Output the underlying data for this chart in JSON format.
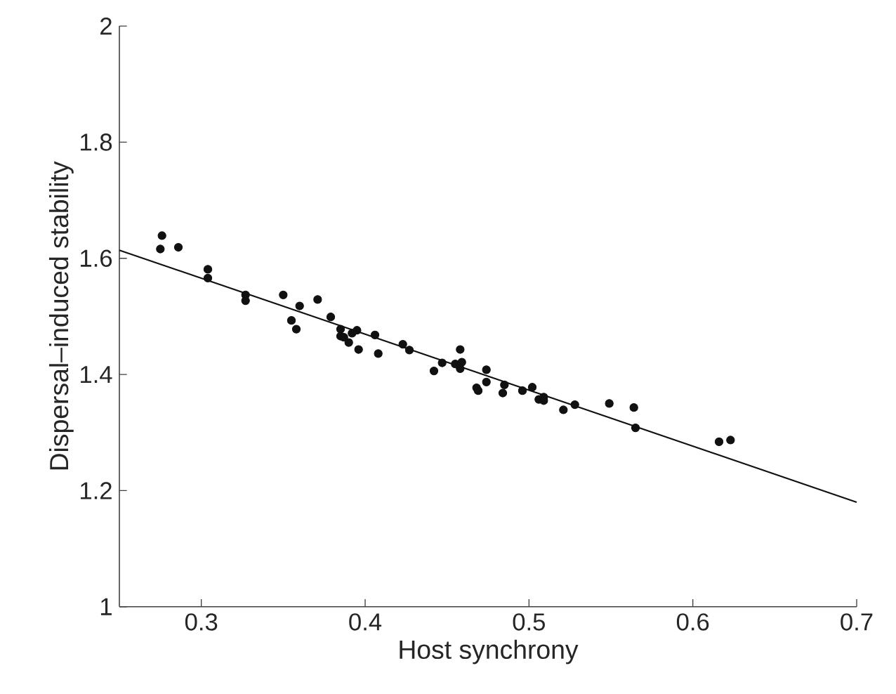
{
  "chart_data": {
    "type": "scatter",
    "xlabel": "Host synchrony",
    "ylabel": "Dispersal–induced stability",
    "xlim": [
      0.25,
      0.7
    ],
    "ylim": [
      1,
      2
    ],
    "xticks": [
      0.3,
      0.4,
      0.5,
      0.6,
      0.7
    ],
    "yticks": [
      1,
      1.2,
      1.4,
      1.6,
      1.8,
      2
    ],
    "grid": false,
    "series": [
      {
        "color": "#111111",
        "marker": "circle",
        "x": [
          0.276,
          0.275,
          0.286,
          0.304,
          0.304,
          0.327,
          0.327,
          0.35,
          0.355,
          0.358,
          0.36,
          0.371,
          0.379,
          0.385,
          0.385,
          0.387,
          0.39,
          0.392,
          0.395,
          0.396,
          0.406,
          0.408,
          0.423,
          0.427,
          0.442,
          0.447,
          0.455,
          0.458,
          0.459,
          0.458,
          0.468,
          0.469,
          0.474,
          0.474,
          0.484,
          0.485,
          0.496,
          0.502,
          0.506,
          0.509,
          0.509,
          0.521,
          0.528,
          0.549,
          0.564,
          0.565,
          0.616,
          0.623
        ],
        "values": [
          1.639,
          1.616,
          1.619,
          1.581,
          1.566,
          1.537,
          1.527,
          1.537,
          1.493,
          1.478,
          1.518,
          1.529,
          1.499,
          1.478,
          1.466,
          1.464,
          1.455,
          1.471,
          1.476,
          1.443,
          1.468,
          1.436,
          1.452,
          1.442,
          1.406,
          1.42,
          1.418,
          1.443,
          1.421,
          1.41,
          1.377,
          1.372,
          1.408,
          1.387,
          1.368,
          1.382,
          1.372,
          1.378,
          1.357,
          1.361,
          1.355,
          1.339,
          1.348,
          1.35,
          1.343,
          1.308,
          1.284,
          1.287
        ]
      },
      {
        "type": "line",
        "color": "#111111",
        "marker": "none",
        "line_style": "solid",
        "x": [
          0.25,
          0.7
        ],
        "values": [
          1.614,
          1.18
        ]
      }
    ]
  }
}
